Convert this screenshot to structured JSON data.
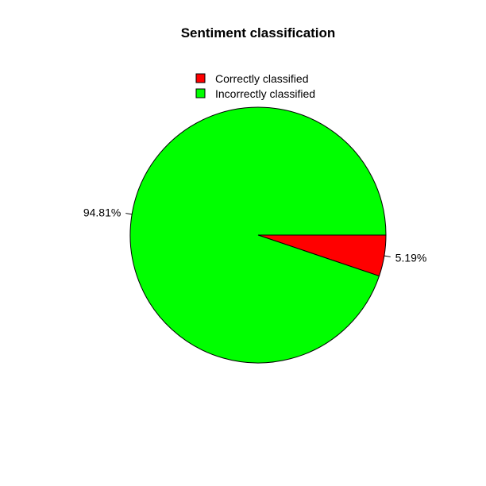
{
  "chart_data": {
    "type": "pie",
    "title": "Sentiment classification",
    "legend_position": "top",
    "slices": [
      {
        "name": "Correctly classified",
        "value": 5.19,
        "label": "5.19%",
        "color": "#ff0000"
      },
      {
        "name": "Incorrectly classified",
        "value": 94.81,
        "label": "94.81%",
        "color": "#00ff00"
      }
    ]
  }
}
